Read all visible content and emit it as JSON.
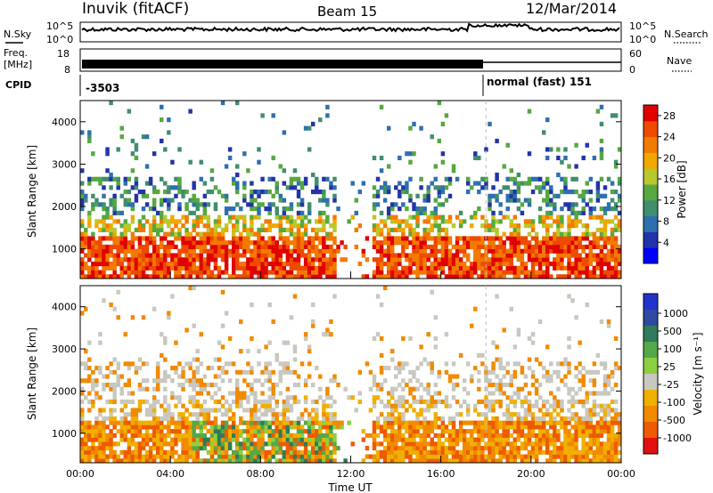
{
  "header": {
    "station": "Inuvik (fitACF)",
    "beam": "Beam 15",
    "date": "12/Mar/2014"
  },
  "status_panels": {
    "nsky_label": "N.Sky",
    "nsky_ticks": [
      "10^5",
      "10^0"
    ],
    "nsearch_label": "N.Search",
    "nsearch_ticks": [
      "10^5",
      "10^0"
    ],
    "freq_label": "Freq.",
    "freq_unit": "[MHz]",
    "freq_ticks": [
      "18",
      "8"
    ],
    "nave_label": "Nave",
    "nave_ticks": [
      "60",
      "0"
    ],
    "cpid_label": "CPID",
    "cpid_segments": [
      {
        "label": "-3503",
        "start_hour": 0,
        "end_hour": 18
      },
      {
        "label": "normal (fast) 151",
        "start_hour": 18,
        "end_hour": 24
      }
    ]
  },
  "chart_data": [
    {
      "type": "heatmap",
      "title": "",
      "ylabel": "Slant Range [km]",
      "xlabel": "",
      "y_ticks": [
        "1000",
        "2000",
        "3000",
        "4000"
      ],
      "ylim": [
        300,
        4500
      ],
      "xlim_hours": [
        0,
        24
      ],
      "colorbar": {
        "label": "Power [dB]",
        "ticks": [
          "4",
          "8",
          "12",
          "16",
          "20",
          "24",
          "28"
        ],
        "range": [
          0,
          30
        ],
        "colors": [
          "#0000ff",
          "#2233aa",
          "#2e6fb0",
          "#3f8e6e",
          "#56a83f",
          "#b8c82e",
          "#f0a800",
          "#f27a00",
          "#ee4a00",
          "#e00000"
        ]
      }
    },
    {
      "type": "heatmap",
      "title": "",
      "ylabel": "Slant Range [km]",
      "xlabel": "Time UT",
      "y_ticks": [
        "1000",
        "2000",
        "3000",
        "4000"
      ],
      "ylim": [
        300,
        4500
      ],
      "xlim_hours": [
        0,
        24
      ],
      "x_ticks": [
        "00:00",
        "04:00",
        "08:00",
        "12:00",
        "16:00",
        "20:00",
        "00:00"
      ],
      "colorbar": {
        "label": "Velocity [m s⁻¹]",
        "ticks": [
          "1000",
          "500",
          "100",
          "25",
          "-25",
          "-100",
          "-500",
          "-1000"
        ],
        "colors": [
          "#2233cc",
          "#2e4aa0",
          "#2f7a5a",
          "#53a84a",
          "#8cd040",
          "#c8c8c0",
          "#f0b000",
          "#f28a00",
          "#ee5a00",
          "#e01010"
        ]
      }
    }
  ],
  "colors": {
    "background": "#ffffff",
    "axis": "#000000"
  }
}
